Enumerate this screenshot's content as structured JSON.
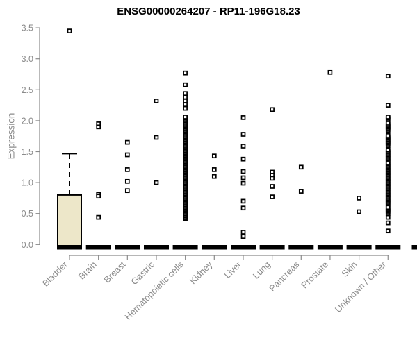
{
  "chart_data": {
    "type": "boxplot",
    "title": "ENSG00000264207 - RP11-196G18.23",
    "ylabel": "Expression",
    "xlabel": "",
    "ylim": [
      0,
      3.5
    ],
    "yticks": [
      0.0,
      0.5,
      1.0,
      1.5,
      2.0,
      2.5,
      3.0,
      3.5
    ],
    "grid": "off",
    "legend": "none",
    "categories": [
      "Bladder",
      "Brain",
      "Breast",
      "Gastric",
      "Hematopoietic cells",
      "Kidney",
      "Liver",
      "Lung",
      "Pancreas",
      "Prostate",
      "Skin",
      "Unknown / Other"
    ],
    "series": [
      {
        "name": "Bladder",
        "box": {
          "q1": 0.0,
          "median": 0.02,
          "q3": 0.8,
          "whisker_high": 1.47,
          "whisker_low": 0.0
        },
        "points": [
          3.45
        ],
        "bands": []
      },
      {
        "name": "Brain",
        "box": null,
        "points": [
          1.95,
          1.9,
          0.81,
          0.78,
          0.44
        ],
        "bands": []
      },
      {
        "name": "Breast",
        "box": null,
        "points": [
          1.65,
          1.45,
          1.21,
          1.02,
          0.87
        ],
        "bands": []
      },
      {
        "name": "Gastric",
        "box": null,
        "points": [
          2.32,
          1.73,
          1.0
        ],
        "bands": []
      },
      {
        "name": "Hematopoietic cells",
        "box": null,
        "points": [
          2.77,
          2.58,
          2.44,
          2.38,
          2.32,
          2.26,
          2.2
        ],
        "bands": [
          [
            0.42,
            2.06
          ]
        ]
      },
      {
        "name": "Kidney",
        "box": null,
        "points": [
          1.43,
          1.21,
          1.1
        ],
        "bands": []
      },
      {
        "name": "Liver",
        "box": null,
        "points": [
          2.05,
          1.78,
          1.59,
          1.38,
          1.18,
          1.08,
          0.99,
          0.7,
          0.59,
          0.2,
          0.13
        ],
        "bands": []
      },
      {
        "name": "Lung",
        "box": null,
        "points": [
          2.18,
          1.17,
          1.12,
          1.07,
          0.94,
          0.77
        ],
        "bands": []
      },
      {
        "name": "Pancreas",
        "box": null,
        "points": [
          1.25,
          0.86
        ],
        "bands": []
      },
      {
        "name": "Prostate",
        "box": null,
        "points": [
          2.78
        ],
        "bands": []
      },
      {
        "name": "Skin",
        "box": null,
        "points": [
          0.75,
          0.53
        ],
        "bands": []
      },
      {
        "name": "Unknown / Other",
        "box": null,
        "points": [
          2.72,
          2.25,
          0.44,
          0.35,
          0.22
        ],
        "bands": [
          [
            2.02,
            2.06
          ],
          [
            1.84,
            1.97
          ],
          [
            1.6,
            1.77
          ],
          [
            1.35,
            1.54
          ],
          [
            0.64,
            1.32
          ],
          [
            0.5,
            0.61
          ]
        ]
      }
    ],
    "zero_bar_all_categories": true,
    "clipped_extra_bar_right_edge": true
  },
  "colors": {
    "box_fill": "#EDE7C9",
    "box_border": "#000000",
    "point": "#000000",
    "zero_bar": "#000000",
    "axis": "#8b8b8b",
    "tick_label": "#8b8b8b",
    "title": "#000000"
  }
}
